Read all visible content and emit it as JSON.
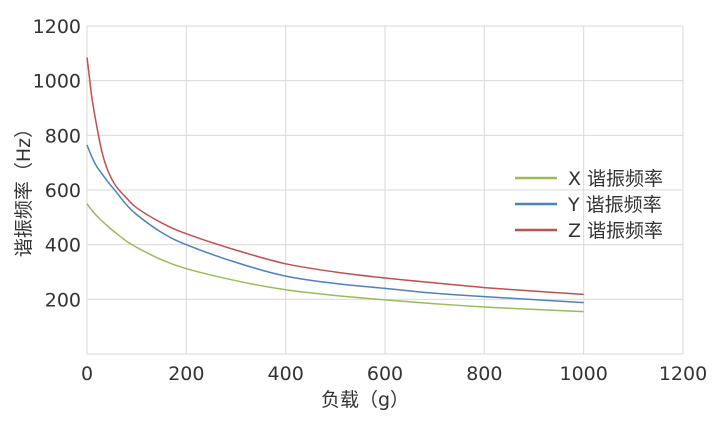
{
  "chart_data": {
    "type": "line",
    "title": "",
    "xlabel": "负载（g）",
    "ylabel": "谐振频率（Hz）",
    "xlim": [
      0,
      1200
    ],
    "ylim": [
      0,
      1200
    ],
    "xticks": [
      0,
      200,
      400,
      600,
      800,
      1000,
      1200
    ],
    "yticks": [
      200,
      400,
      600,
      800,
      1000,
      1200
    ],
    "xtick_labels": [
      "0",
      "200",
      "400",
      "600",
      "800",
      "1000",
      "1200"
    ],
    "ytick_labels": [
      "200",
      "400",
      "600",
      "800",
      "1000",
      "1200"
    ],
    "grid": true,
    "legend_position": "right",
    "series": [
      {
        "name": "X 谐振频率",
        "color": "#9bbb59",
        "x": [
          0,
          10,
          20,
          40,
          60,
          80,
          100,
          150,
          200,
          300,
          400,
          500,
          600,
          700,
          800,
          900,
          1000
        ],
        "y": [
          550,
          525,
          505,
          470,
          440,
          412,
          390,
          345,
          312,
          268,
          235,
          214,
          198,
          184,
          172,
          163,
          155
        ]
      },
      {
        "name": "Y 谐振频率",
        "color": "#4f81bd",
        "x": [
          0,
          10,
          20,
          40,
          60,
          80,
          100,
          150,
          200,
          300,
          400,
          500,
          600,
          700,
          800,
          900,
          1000
        ],
        "y": [
          765,
          720,
          685,
          635,
          590,
          545,
          510,
          445,
          400,
          335,
          285,
          258,
          240,
          222,
          210,
          199,
          188
        ]
      },
      {
        "name": "Z 谐振频率",
        "color": "#c0504d",
        "x": [
          0,
          5,
          10,
          20,
          30,
          40,
          50,
          60,
          80,
          100,
          150,
          200,
          300,
          400,
          500,
          600,
          700,
          800,
          900,
          1000
        ],
        "y": [
          1085,
          1010,
          935,
          830,
          740,
          680,
          640,
          610,
          570,
          535,
          480,
          440,
          380,
          330,
          300,
          278,
          260,
          243,
          230,
          218
        ]
      }
    ]
  }
}
